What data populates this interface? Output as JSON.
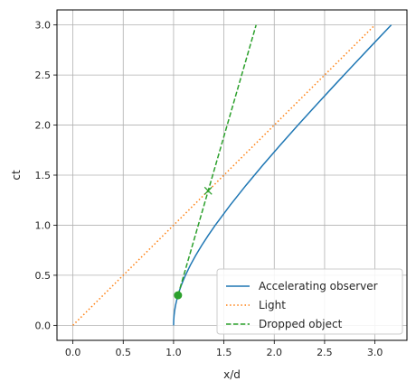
{
  "chart_data": {
    "type": "line",
    "title": "",
    "xlabel": "x/d",
    "ylabel": "ct",
    "xlim": [
      -0.158,
      3.318
    ],
    "ylim": [
      -0.15,
      3.15
    ],
    "grid": true,
    "xticks": [
      0.0,
      0.5,
      1.0,
      1.5,
      2.0,
      2.5,
      3.0
    ],
    "yticks": [
      0.0,
      0.5,
      1.0,
      1.5,
      2.0,
      2.5,
      3.0
    ],
    "xtick_labels": [
      "0.0",
      "0.5",
      "1.0",
      "1.5",
      "2.0",
      "2.5",
      "3.0"
    ],
    "ytick_labels": [
      "0.0",
      "0.5",
      "1.0",
      "1.5",
      "2.0",
      "2.5",
      "3.0"
    ],
    "legend_position": "lower-right",
    "series": [
      {
        "name": "Accelerating observer",
        "style": "solid",
        "color": "#1f77b4",
        "x": [
          1.0,
          1.0012,
          1.005,
          1.0112,
          1.0198,
          1.0308,
          1.044,
          1.0595,
          1.077,
          1.0966,
          1.118,
          1.1662,
          1.2207,
          1.2806,
          1.3454,
          1.4142,
          1.562,
          1.7205,
          1.8868,
          2.0591,
          2.2361,
          2.4166,
          2.6,
          2.7857,
          2.9732,
          3.1623
        ],
        "y": [
          0.0,
          0.05,
          0.1,
          0.15,
          0.2,
          0.25,
          0.3,
          0.35,
          0.4,
          0.45,
          0.5,
          0.6,
          0.7,
          0.8,
          0.9,
          1.0,
          1.2,
          1.4,
          1.6,
          1.8,
          2.0,
          2.2,
          2.4,
          2.6,
          2.8,
          3.0
        ]
      },
      {
        "name": "Light",
        "style": "dotted",
        "color": "#ff7f0e",
        "x": [
          0.0,
          3.0
        ],
        "y": [
          0.0,
          3.0
        ]
      },
      {
        "name": "Dropped object",
        "style": "dashed",
        "color": "#2ca02c",
        "x": [
          1.044,
          1.82
        ],
        "y": [
          0.3,
          3.0
        ]
      }
    ],
    "markers": [
      {
        "type": "circle",
        "color": "#2ca02c",
        "x": 1.044,
        "y": 0.3
      },
      {
        "type": "x",
        "color": "#2ca02c",
        "x": 1.344,
        "y": 1.344
      }
    ]
  }
}
